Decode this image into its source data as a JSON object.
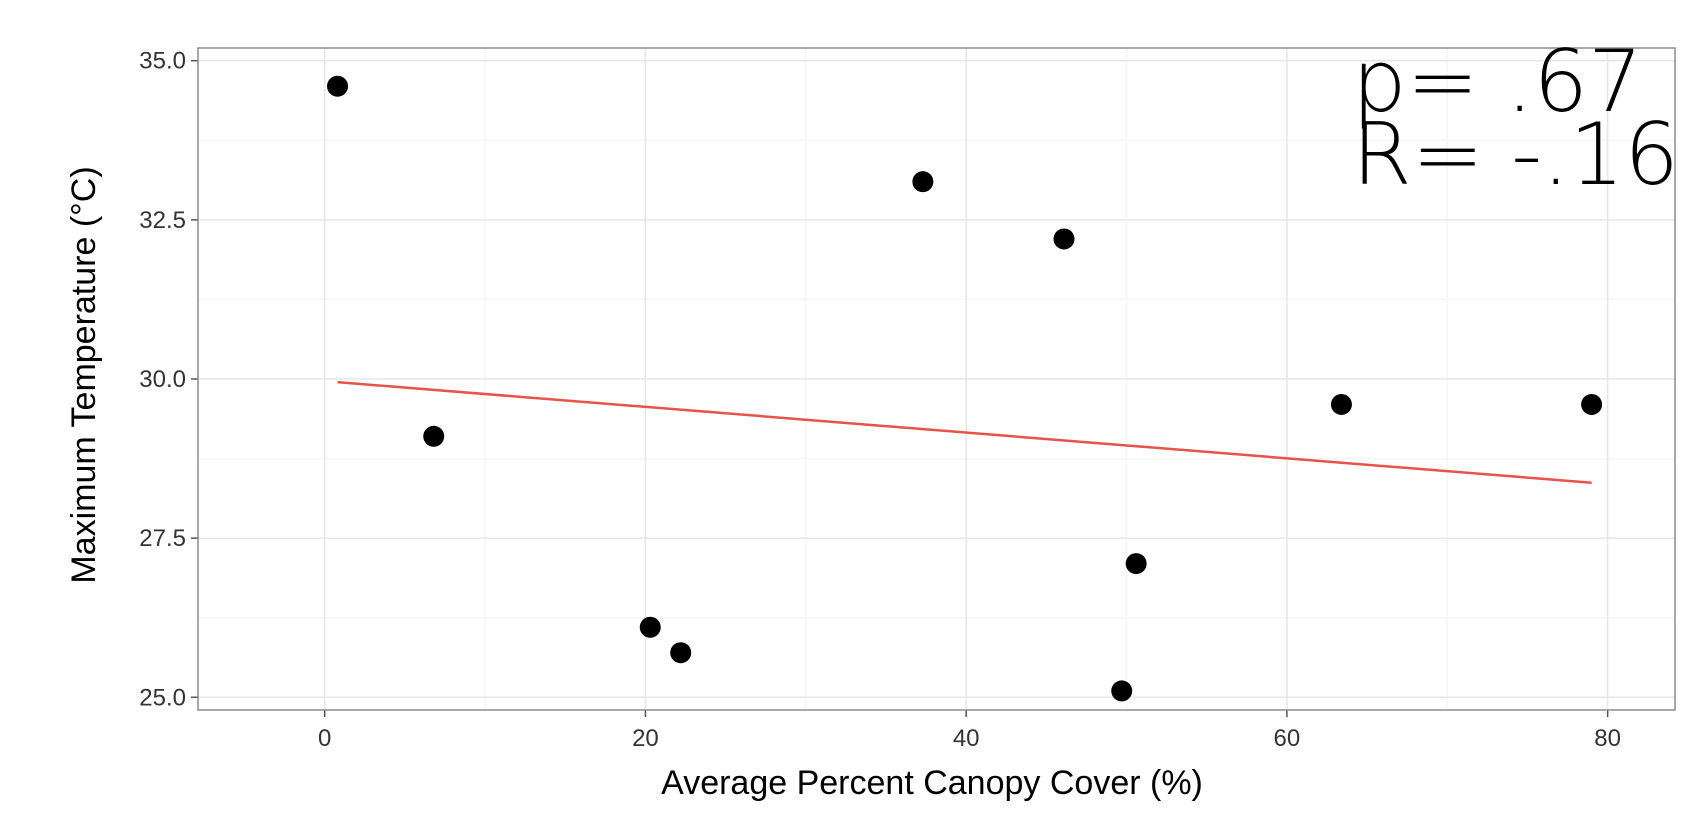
{
  "chart_data": {
    "type": "scatter",
    "title": "",
    "xlabel": "Average Percent Canopy Cover (%)",
    "ylabel": "Maximum Temperature (°C)",
    "xlim": [
      -7.9,
      84.2
    ],
    "ylim": [
      24.8,
      35.2
    ],
    "x_ticks": [
      0,
      20,
      40,
      60,
      80
    ],
    "x_tick_labels": [
      "0",
      "20",
      "40",
      "60",
      "80"
    ],
    "y_ticks": [
      25.0,
      27.5,
      30.0,
      32.5,
      35.0
    ],
    "y_tick_labels": [
      "25.0",
      "27.5",
      "30.0",
      "32.5",
      "35.0"
    ],
    "grid": true,
    "legend": "none",
    "point_color": "#000000",
    "points": [
      {
        "x": 0.8,
        "y": 34.6
      },
      {
        "x": 6.8,
        "y": 29.1
      },
      {
        "x": 20.3,
        "y": 26.1
      },
      {
        "x": 22.2,
        "y": 25.7
      },
      {
        "x": 37.3,
        "y": 33.1
      },
      {
        "x": 46.1,
        "y": 32.2
      },
      {
        "x": 49.7,
        "y": 25.1
      },
      {
        "x": 50.6,
        "y": 27.1
      },
      {
        "x": 63.4,
        "y": 29.6
      },
      {
        "x": 79.0,
        "y": 29.6
      }
    ],
    "fit_line": {
      "color": "#e8524a",
      "x": [
        0.8,
        79.0
      ],
      "y": [
        29.95,
        28.37
      ]
    },
    "annotations": [
      "p= .67",
      "R= -.16"
    ]
  }
}
